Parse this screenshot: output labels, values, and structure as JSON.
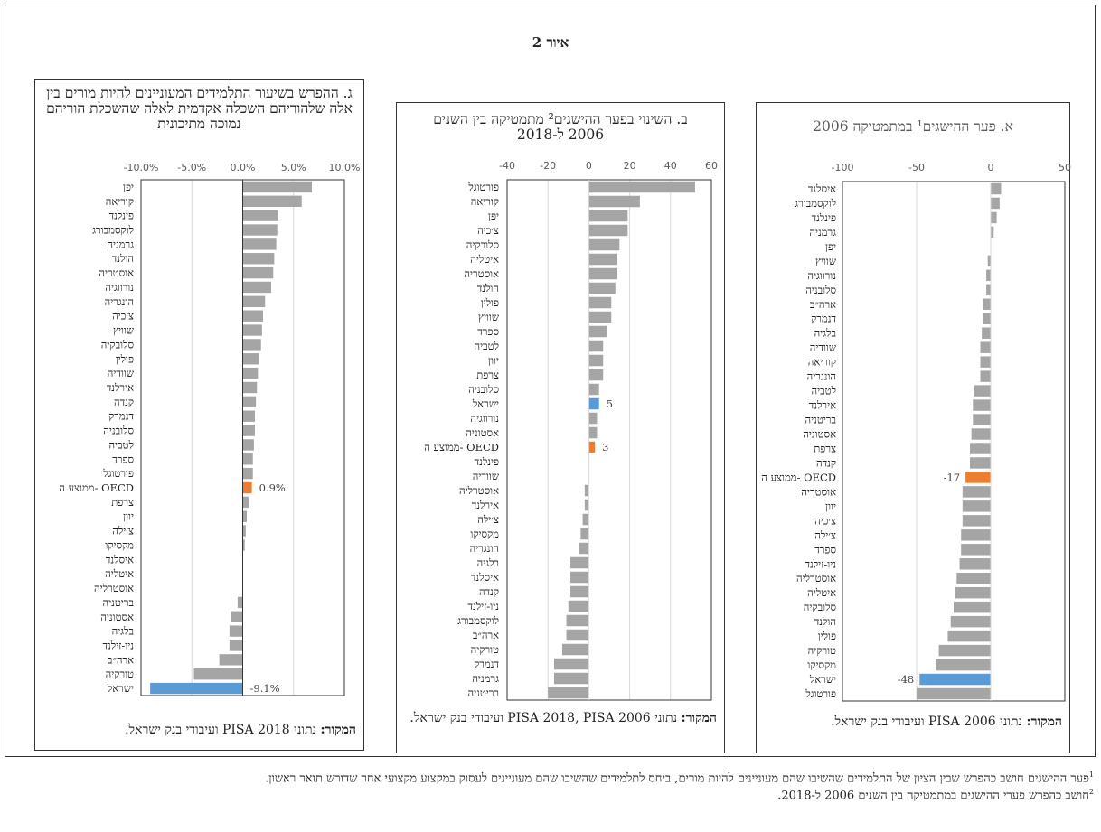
{
  "figure_title": "איור 2",
  "colors": {
    "default": "#A5A5A5",
    "israel": "#5B9BD5",
    "oecd": "#ED7D31",
    "grid": "#D9D9D9"
  },
  "panels": [
    {
      "title": "ג. ההפרש בשיעור התלמידים המעוניינים להיות מורים בין אלה שלהוריהם השכלה אקדמית לאלה שהשכלת הוריהם נמוכה מתיכונית",
      "source_bold": "המקור:",
      "source_text": " נתוני PISA 2018 ועיבודי בנק ישראל."
    },
    {
      "title": "ב. השינוי בפער ההישגים² מתמטיקה בין השנים 2006 ל-2018",
      "source_bold": "המקור:",
      "source_text": " נתוני PISA 2018, PISA 2006 ועיבודי בנק ישראל."
    },
    {
      "title": "א. פער ההישגים¹ במתמטיקה 2006",
      "source_bold": "המקור:",
      "source_text": " נתוני PISA 2006 ועיבודי בנק ישראל."
    }
  ],
  "chart_data": [
    {
      "type": "bar",
      "orientation": "horizontal",
      "title": "ג. ההפרש בשיעור התלמידים המעוניינים להיות מורים בין אלה שלהוריהם השכלה אקדמית לאלה שהשכלת הוריהם נמוכה מתיכונית",
      "xlim": [
        -10,
        10
      ],
      "ticks": [
        -10,
        -5,
        0,
        5,
        10
      ],
      "tick_labels": [
        "-10.0%",
        "-5.0%",
        "0.0%",
        "5.0%",
        "10.0%"
      ],
      "categories": [
        "יפן",
        "קוריאה",
        "פינלנד",
        "לוקסמבורג",
        "גרמניה",
        "הולנד",
        "אוסטריה",
        "נורווגיה",
        "הונגריה",
        "צ׳כיה",
        "שוויץ",
        "סלובקיה",
        "פולין",
        "שוודיה",
        "אירלנד",
        "קנדה",
        "דנמרק",
        "סלובניה",
        "לטביה",
        "ספרד",
        "פורטוגל",
        "ממוצע ה- OECD",
        "צרפת",
        "יוון",
        "צ׳ילה",
        "מקסיקו",
        "איסלנד",
        "איטליה",
        "אוסטרליה",
        "בריטניה",
        "אסטוניה",
        "בלגיה",
        "ניו-זילנד",
        "ארה״ב",
        "טורקיה",
        "ישראל"
      ],
      "values": [
        6.8,
        5.8,
        3.5,
        3.4,
        3.3,
        3.1,
        3.0,
        2.8,
        2.2,
        2.0,
        1.9,
        1.8,
        1.6,
        1.5,
        1.4,
        1.3,
        1.2,
        1.2,
        1.1,
        1.0,
        1.0,
        0.9,
        0.6,
        0.4,
        0.3,
        0.2,
        0,
        0,
        0,
        -0.5,
        -1.2,
        -1.3,
        -1.3,
        -2.3,
        -4.8,
        -9.1
      ],
      "highlight": {
        "ישראל": "israel",
        "ממוצע ה- OECD": "oecd"
      },
      "data_labels": {
        "ממוצע ה- OECD": "0.9%",
        "ישראל": "-9.1%"
      }
    },
    {
      "type": "bar",
      "orientation": "horizontal",
      "title": "ב. השינוי בפער ההישגים² מתמטיקה בין השנים 2006 ל-2018",
      "xlim": [
        -40,
        60
      ],
      "ticks": [
        -40,
        -20,
        0,
        20,
        40,
        60
      ],
      "tick_labels": [
        "-40",
        "-20",
        "0",
        "20",
        "40",
        "60"
      ],
      "categories": [
        "פורטוגל",
        "קוריאה",
        "יפן",
        "צ׳כיה",
        "סלובקיה",
        "איטליה",
        "אוסטריה",
        "הולנד",
        "פולין",
        "שוויץ",
        "ספרד",
        "לטביה",
        "יוון",
        "צרפת",
        "סלובניה",
        "ישראל",
        "נורווגיה",
        "אסטוניה",
        "ממוצע ה- OECD",
        "פינלנד",
        "שוודיה",
        "אוסטרליה",
        "אירלנד",
        "צ׳ילה",
        "מקסיקו",
        "הונגריה",
        "בלגיה",
        "איסלנד",
        "קנדה",
        "ניו-זילנד",
        "לוקסמבורג",
        "ארה״ב",
        "טורקיה",
        "דנמרק",
        "גרמניה",
        "בריטניה"
      ],
      "values": [
        52,
        25,
        19,
        19,
        15,
        14,
        14,
        13,
        11,
        11,
        9,
        7,
        7,
        7,
        5,
        5,
        4,
        4,
        3,
        0,
        0,
        -2,
        -2,
        -3,
        -4,
        -5,
        -9,
        -9,
        -9,
        -10,
        -11,
        -11,
        -13,
        -17,
        -17,
        -20
      ],
      "highlight": {
        "ישראל": "israel",
        "ממוצע ה- OECD": "oecd"
      },
      "data_labels": {
        "ישראל": "5",
        "ממוצע ה- OECD": "3"
      }
    },
    {
      "type": "bar",
      "orientation": "horizontal",
      "title": "א. פער ההישגים¹ במתמטיקה 2006",
      "xlim": [
        -100,
        50
      ],
      "ticks": [
        -100,
        -50,
        0,
        50
      ],
      "tick_labels": [
        "-100",
        "-50",
        "0",
        "50"
      ],
      "categories": [
        "איסלנד",
        "לוקסמבורג",
        "פינלנד",
        "גרמניה",
        "יפן",
        "שוויץ",
        "נורווגיה",
        "סלובניה",
        "ארה״ב",
        "דנמרק",
        "בלגיה",
        "שוודיה",
        "קוריאה",
        "הונגריה",
        "לטביה",
        "אירלנד",
        "בריטניה",
        "אסטוניה",
        "צרפת",
        "קנדה",
        "ממוצע ה- OECD",
        "אוסטריה",
        "יוון",
        "צ׳כיה",
        "צ׳ילה",
        "ספרד",
        "ניו-זילנד",
        "אוסטרליה",
        "איטליה",
        "סלובקיה",
        "הולנד",
        "פולין",
        "טורקיה",
        "מקסיקו",
        "ישראל",
        "פורטוגל"
      ],
      "values": [
        7,
        6,
        4,
        2,
        0,
        -2,
        -3,
        -3,
        -5,
        -5,
        -6,
        -7,
        -7,
        -7,
        -11,
        -12,
        -12,
        -13,
        -14,
        -14,
        -17,
        -19,
        -19,
        -19,
        -20,
        -20,
        -21,
        -23,
        -24,
        -25,
        -27,
        -29,
        -35,
        -37,
        -48,
        -50
      ],
      "highlight": {
        "ישראל": "israel",
        "ממוצע ה- OECD": "oecd"
      },
      "data_labels": {
        "ממוצע ה- OECD": "-17",
        "ישראל": "-48"
      }
    }
  ],
  "footnotes": [
    {
      "sup": "1",
      "text": "פער ההישגים חושב כהפרש שבין הציון של התלמידים שהשיבו שהם מעוניינים להיות מורים, ביחס לתלמידים שהשיבו שהם מעוניינים לעסוק במקצוע מקצועי אחר שדורש תואר ראשון."
    },
    {
      "sup": "2",
      "text": "חושב כהפרש פערי ההישגים במתמטיקה בין השנים 2006 ל-2018."
    }
  ]
}
